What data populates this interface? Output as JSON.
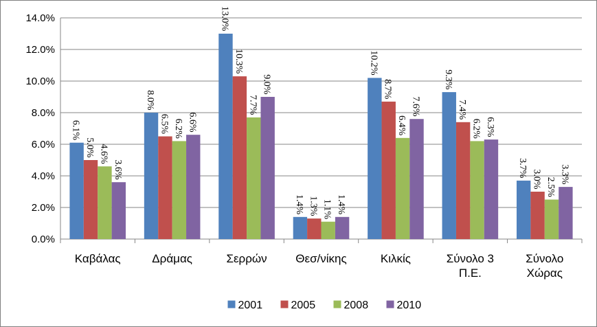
{
  "chart_data": {
    "type": "bar",
    "title": "",
    "xlabel": "",
    "ylabel": "",
    "categories": [
      [
        "Καβάλας"
      ],
      [
        "Δράμας"
      ],
      [
        "Σερρών"
      ],
      [
        "Θεσ/νίκης"
      ],
      [
        "Κιλκίς"
      ],
      [
        "Σύνολο 3",
        "Π.Ε."
      ],
      [
        "Σύνολο",
        "Χώρας"
      ]
    ],
    "series": [
      {
        "name": "2001",
        "color": "#4f81bd",
        "values": [
          6.1,
          8.0,
          13.0,
          1.4,
          10.2,
          9.3,
          3.7
        ],
        "labels": [
          "6.1%",
          "8.0%",
          "13.0%",
          "1.4%",
          "10.2%",
          "9.3%",
          "3.7%"
        ]
      },
      {
        "name": "2005",
        "color": "#c0504d",
        "values": [
          5.0,
          6.5,
          10.3,
          1.3,
          8.7,
          7.4,
          3.0
        ],
        "labels": [
          "5.0%",
          "6.5%",
          "10.3%",
          "1.3%",
          "8.7%",
          "7.4%",
          "3.0%"
        ]
      },
      {
        "name": "2008",
        "color": "#9bbb59",
        "values": [
          4.6,
          6.2,
          7.7,
          1.1,
          6.4,
          6.2,
          2.5
        ],
        "labels": [
          "4.6%",
          "6.2%",
          "7.7%",
          "1.1%",
          "6.4%",
          "6.2%",
          "2.5%"
        ]
      },
      {
        "name": "2010",
        "color": "#8064a2",
        "values": [
          3.6,
          6.6,
          9.0,
          1.4,
          7.6,
          6.3,
          3.3
        ],
        "labels": [
          "3.6%",
          "6.6%",
          "9.0%",
          "1.4%",
          "7.6%",
          "6.3%",
          "3.3%"
        ]
      }
    ],
    "ylim": [
      0,
      14
    ],
    "yticks": [
      "0.0%",
      "2.0%",
      "4.0%",
      "6.0%",
      "8.0%",
      "10.0%",
      "12.0%",
      "14.0%"
    ],
    "grid": true,
    "legend_position": "bottom"
  }
}
